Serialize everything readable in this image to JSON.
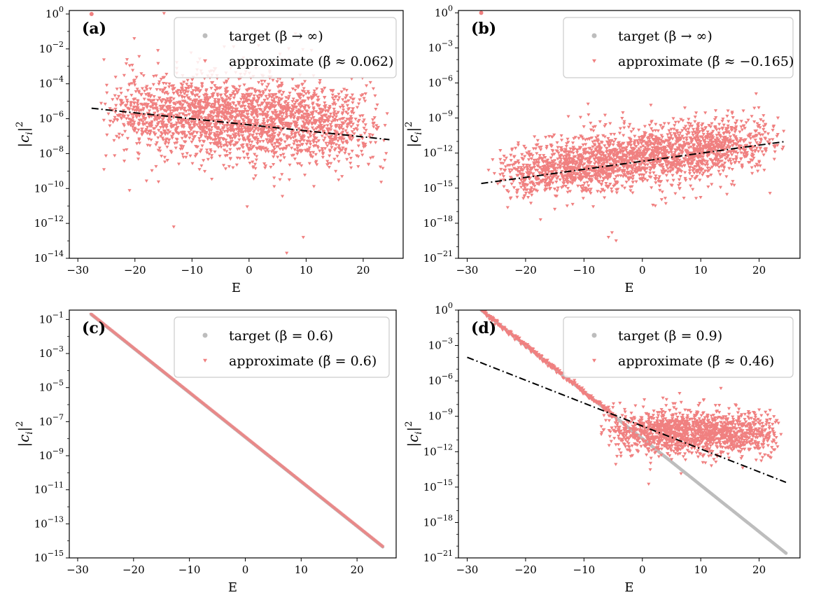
{
  "colors": {
    "target": "#bdbdbd",
    "approximate": "#f08080",
    "fit_line": "#000000",
    "legend_border": "#cccccc"
  },
  "chart_data": [
    {
      "id": "a",
      "type": "scatter",
      "panel_label": "(a)",
      "xlabel": "E",
      "ylabel": "|c_i|^2",
      "yscale": "log",
      "xlim": [
        -31.5,
        27.0
      ],
      "ylim_exp": [
        -14,
        0.2
      ],
      "xticks": [
        -30,
        -20,
        -10,
        0,
        10,
        20
      ],
      "xtick_labels": [
        "−30",
        "−20",
        "−10",
        "0",
        "10",
        "20"
      ],
      "yticks_exp": [
        -14,
        -12,
        -10,
        -8,
        -6,
        -4,
        -2,
        0
      ],
      "legend": [
        {
          "series": "target",
          "marker": "circle",
          "label": "target (β → ∞)"
        },
        {
          "series": "approximate",
          "marker": "triangle-down",
          "label": "approximate (β̃ ≈ 0.062)"
        }
      ],
      "target_points": [
        [
          -27.6,
          0.0
        ]
      ],
      "fit_line": {
        "x": [
          -27.6,
          24.6
        ],
        "log10_y": [
          -5.4,
          -7.2
        ]
      },
      "approx_cloud": {
        "n": 2400,
        "x_range": [
          -27,
          25
        ],
        "center_log10_line": {
          "x": [
            -27,
            25
          ],
          "log10_y": [
            -5.5,
            -6.5
          ]
        },
        "spread_log10": 1.1,
        "outliers": [
          [
            -13.2,
            -12.2
          ],
          [
            6.6,
            -13.7
          ],
          [
            9.5,
            -12.8
          ],
          [
            -9.1,
            -3.2
          ],
          [
            -6.5,
            -3.5
          ],
          [
            1.2,
            -3.1
          ]
        ]
      }
    },
    {
      "id": "b",
      "type": "scatter",
      "panel_label": "(b)",
      "xlabel": "E",
      "ylabel": "|c_i|^2",
      "yscale": "log",
      "xlim": [
        -31.5,
        27.0
      ],
      "ylim_exp": [
        -21,
        0.2
      ],
      "xticks": [
        -30,
        -20,
        -10,
        0,
        10,
        20
      ],
      "xtick_labels": [
        "−30",
        "−20",
        "−10",
        "0",
        "10",
        "20"
      ],
      "yticks_exp": [
        -21,
        -18,
        -15,
        -12,
        -9,
        -6,
        -3,
        0
      ],
      "legend": [
        {
          "series": "target",
          "marker": "circle",
          "label": "target (β → ∞)"
        },
        {
          "series": "approximate",
          "marker": "triangle-down",
          "label": "approximate (β̃ ≈ −0.165)"
        }
      ],
      "target_points": [
        [
          -27.6,
          0.0
        ]
      ],
      "fit_line": {
        "x": [
          -27.6,
          24.6
        ],
        "log10_y": [
          -14.6,
          -11.0
        ]
      },
      "approx_cloud": {
        "n": 2400,
        "x_range": [
          -27,
          25
        ],
        "center_log10_line": {
          "x": [
            -27,
            25
          ],
          "log10_y": [
            -14.0,
            -10.8
          ]
        },
        "spread_log10": 1.15,
        "outliers": [
          [
            -5.2,
            -18.8
          ],
          [
            -4.5,
            -19.5
          ],
          [
            -5.8,
            -19.2
          ],
          [
            -15.0,
            -16.8
          ]
        ]
      }
    },
    {
      "id": "c",
      "type": "scatter",
      "panel_label": "(c)",
      "xlabel": "E",
      "ylabel": "|c_i|^2",
      "yscale": "log",
      "xlim": [
        -31.5,
        27.0
      ],
      "ylim_exp": [
        -15,
        -0.45
      ],
      "xticks": [
        -30,
        -20,
        -10,
        0,
        10,
        20
      ],
      "xtick_labels": [
        "−30",
        "−20",
        "−10",
        "0",
        "10",
        "20"
      ],
      "yticks_exp": [
        -15,
        -13,
        -11,
        -9,
        -7,
        -5,
        -3,
        -1
      ],
      "legend": [
        {
          "series": "target",
          "marker": "circle",
          "label": "target (β = 0.6)"
        },
        {
          "series": "approximate",
          "marker": "triangle-down",
          "label": "approximate (β̃ = 0.6)"
        }
      ],
      "diagonal": {
        "x": [
          -27.6,
          24.6
        ],
        "log10_y": [
          -0.7,
          -14.35
        ]
      },
      "fit_line": null
    },
    {
      "id": "d",
      "type": "scatter",
      "panel_label": "(d)",
      "xlabel": "E",
      "ylabel": "|c_i|^2",
      "yscale": "log",
      "xlim": [
        -31.5,
        27.0
      ],
      "ylim_exp": [
        -21,
        0
      ],
      "xticks": [
        -30,
        -20,
        -10,
        0,
        10,
        20
      ],
      "xtick_labels": [
        "−30",
        "−20",
        "−10",
        "0",
        "10",
        "20"
      ],
      "yticks_exp": [
        -21,
        -18,
        -15,
        -12,
        -9,
        -6,
        -3,
        0
      ],
      "legend": [
        {
          "series": "target",
          "marker": "circle",
          "label": "target (β = 0.9)"
        },
        {
          "series": "approximate",
          "marker": "triangle-down",
          "label": "approximate (β̃ ≈ 0.46)"
        }
      ],
      "target_line": {
        "x": [
          -27.6,
          24.6
        ],
        "log10_y": [
          0.0,
          -20.6
        ]
      },
      "fit_line": {
        "x": [
          -30.0,
          24.6
        ],
        "log10_y": [
          -4.0,
          -14.6
        ]
      },
      "approx_diagonal": {
        "x": [
          -27.6,
          -5.0
        ],
        "log10_y": [
          0.0,
          -8.9
        ]
      },
      "approx_cloud": {
        "n": 1500,
        "x_range": [
          -8,
          25
        ],
        "center_log10_line": {
          "x": [
            -8,
            25
          ],
          "log10_y": [
            -10.2,
            -10.6
          ]
        },
        "spread_log10": 0.9
      }
    }
  ]
}
